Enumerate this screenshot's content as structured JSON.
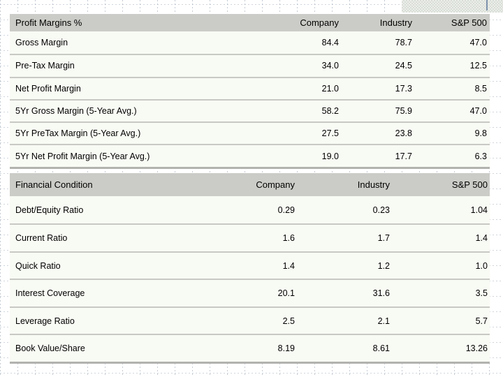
{
  "chart_data": [
    {
      "type": "table",
      "title": "Profit Margins %",
      "columns": [
        "Company",
        "Industry",
        "S&P 500"
      ],
      "rows": [
        {
          "label": "Gross Margin",
          "values": [
            "84.4",
            "78.7",
            "47.0"
          ]
        },
        {
          "label": "Pre-Tax Margin",
          "values": [
            "34.0",
            "24.5",
            "12.5"
          ]
        },
        {
          "label": "Net Profit Margin",
          "values": [
            "21.0",
            "17.3",
            "8.5"
          ]
        },
        {
          "label": "5Yr Gross Margin (5-Year Avg.)",
          "values": [
            "58.2",
            "75.9",
            "47.0"
          ]
        },
        {
          "label": "5Yr PreTax Margin (5-Year Avg.)",
          "values": [
            "27.5",
            "23.8",
            "9.8"
          ]
        },
        {
          "label": "5Yr Net Profit Margin (5-Year Avg.)",
          "values": [
            "19.0",
            "17.7",
            "6.3"
          ]
        }
      ]
    },
    {
      "type": "table",
      "title": "Financial Condition",
      "columns": [
        "Company",
        "Industry",
        "S&P 500"
      ],
      "rows": [
        {
          "label": "Debt/Equity Ratio",
          "values": [
            "0.29",
            "0.23",
            "1.04"
          ]
        },
        {
          "label": "Current Ratio",
          "values": [
            "1.6",
            "1.7",
            "1.4"
          ]
        },
        {
          "label": "Quick Ratio",
          "values": [
            "1.4",
            "1.2",
            "1.0"
          ]
        },
        {
          "label": "Interest Coverage",
          "values": [
            "20.1",
            "31.6",
            "3.5"
          ]
        },
        {
          "label": "Leverage Ratio",
          "values": [
            "2.5",
            "2.1",
            "5.7"
          ]
        },
        {
          "label": "Book Value/Share",
          "values": [
            "8.19",
            "8.61",
            "13.26"
          ]
        }
      ]
    }
  ],
  "colors": {
    "header_band": "#cbcbc7",
    "row_background": "#f8faf4",
    "row_separator": "#c8c8c4",
    "table_bottom_border": "#b2b2af",
    "grid_line": "#96a3b2",
    "accent_line": "#7e92ac"
  }
}
